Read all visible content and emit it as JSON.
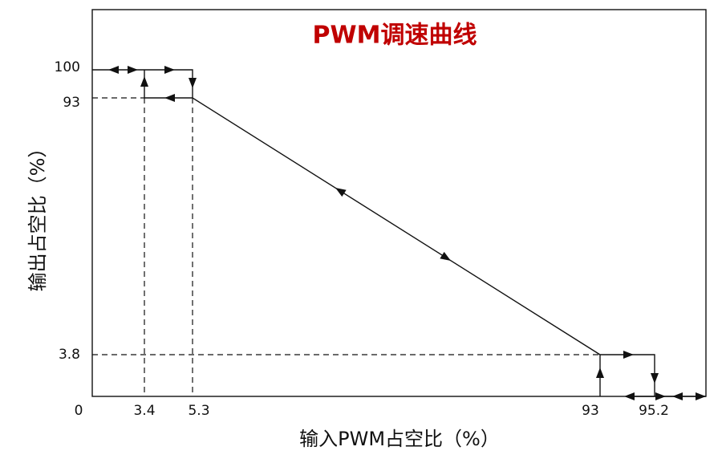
{
  "title": "PWM调速曲线",
  "x_axis": {
    "label": "输入PWM占空比（%）",
    "ticks": [
      "0",
      "3.4",
      "5.3",
      "93",
      "95.2"
    ]
  },
  "y_axis": {
    "label": "输出占空比（%）",
    "ticks": [
      "100",
      "93",
      "3.8"
    ]
  }
}
